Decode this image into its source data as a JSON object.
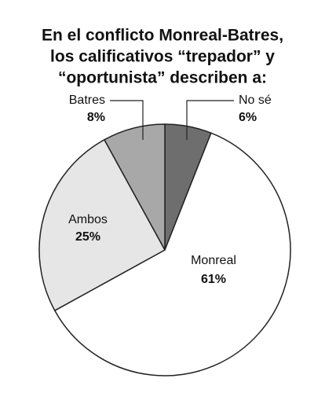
{
  "chart_data": {
    "type": "pie",
    "title": [
      "En el conflicto Monreal-Batres,",
      "los calificativos “trepador” y",
      "“oportunista” describen a:"
    ],
    "categories": [
      "No sé",
      "Monreal",
      "Ambos",
      "Batres"
    ],
    "values": [
      6,
      61,
      25,
      8
    ],
    "value_labels": [
      "6%",
      "61%",
      "25%",
      "8%"
    ],
    "colors": [
      "#6e6e6e",
      "#ffffff",
      "#e6e6e6",
      "#a8a8a8"
    ]
  }
}
